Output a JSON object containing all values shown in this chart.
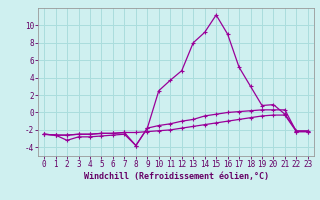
{
  "x": [
    0,
    1,
    2,
    3,
    4,
    5,
    6,
    7,
    8,
    9,
    10,
    11,
    12,
    13,
    14,
    15,
    16,
    17,
    18,
    19,
    20,
    21,
    22,
    23
  ],
  "line1_y": [
    -2.5,
    -2.6,
    -3.2,
    -2.8,
    -2.8,
    -2.7,
    -2.6,
    -2.5,
    -3.8,
    -1.8,
    -1.5,
    -1.3,
    -1.0,
    -0.8,
    -0.4,
    -0.2,
    0.0,
    0.1,
    0.2,
    0.3,
    0.3,
    0.3,
    -2.2,
    -2.2
  ],
  "line2_y": [
    -2.5,
    -2.6,
    -2.6,
    -2.5,
    -2.5,
    -2.4,
    -2.4,
    -2.3,
    -2.3,
    -2.2,
    -2.1,
    -2.0,
    -1.8,
    -1.6,
    -1.4,
    -1.2,
    -1.0,
    -0.8,
    -0.6,
    -0.4,
    -0.3,
    -0.3,
    -2.2,
    -2.2
  ],
  "line3_y": [
    -2.5,
    -2.6,
    -2.6,
    -2.5,
    -2.5,
    -2.4,
    -2.4,
    -2.3,
    -3.8,
    -1.8,
    2.5,
    3.7,
    4.8,
    8.0,
    9.2,
    11.2,
    9.0,
    5.2,
    3.0,
    0.8,
    0.9,
    -0.2,
    -2.1,
    -2.1
  ],
  "bg_color": "#cff0f0",
  "grid_color": "#aadddd",
  "line_color": "#990099",
  "xlabel": "Windchill (Refroidissement éolien,°C)",
  "ylim": [
    -5,
    12
  ],
  "xlim": [
    -0.5,
    23.5
  ],
  "yticks": [
    -4,
    -2,
    0,
    2,
    4,
    6,
    8,
    10
  ],
  "xticks": [
    0,
    1,
    2,
    3,
    4,
    5,
    6,
    7,
    8,
    9,
    10,
    11,
    12,
    13,
    14,
    15,
    16,
    17,
    18,
    19,
    20,
    21,
    22,
    23
  ],
  "tick_fontsize": 5.5,
  "xlabel_fontsize": 6.0,
  "line_width": 0.9,
  "marker_size": 3.5
}
